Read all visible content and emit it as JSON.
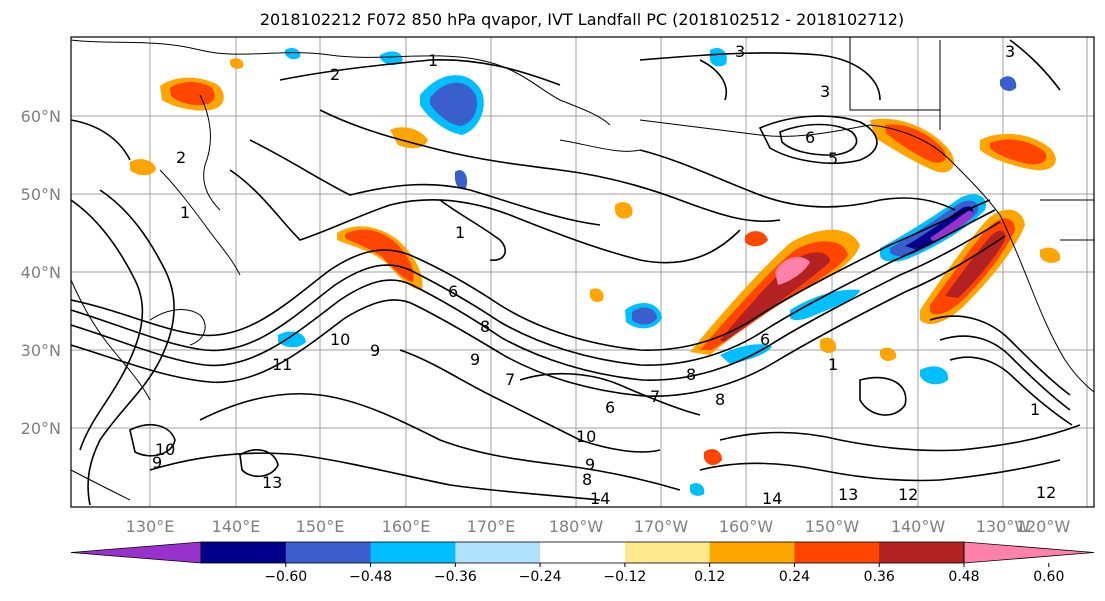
{
  "title": "2018102212 F072 850 hPa qvapor, IVT Landfall PC (2018102512 - 2018102712)",
  "lat_labels": [
    "60°N",
    "50°N",
    "40°N",
    "30°N",
    "20°N"
  ],
  "lon_labels": [
    "130°E",
    "140°E",
    "150°E",
    "160°E",
    "170°E",
    "180°W",
    "170°W",
    "160°W",
    "150°W",
    "140°W",
    "130°W",
    "120°W"
  ],
  "colorbar": {
    "ticks": [
      "−0.60",
      "−0.48",
      "−0.36",
      "−0.24",
      "−0.12",
      "0.12",
      "0.24",
      "0.36",
      "0.48",
      "0.60"
    ],
    "colors": [
      "#9932cc",
      "#00008b",
      "#3a5fcd",
      "#00bfff",
      "#b0e2ff",
      "#ffffff",
      "#ffe98a",
      "#ffa500",
      "#ff4500",
      "#b22222",
      "#ff82ab"
    ]
  },
  "contour_labels": [
    "2",
    "1",
    "3",
    "3",
    "3",
    "6",
    "5",
    "2",
    "1",
    "1",
    "6",
    "8",
    "9",
    "10",
    "6",
    "7",
    "8",
    "9",
    "10",
    "8",
    "9",
    "14",
    "14",
    "13",
    "12",
    "12",
    "13",
    "10",
    "11",
    "9",
    "1",
    "7",
    "8",
    "6",
    "1"
  ]
}
